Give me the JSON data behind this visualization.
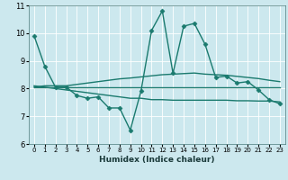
{
  "xlabel": "Humidex (Indice chaleur)",
  "xlim": [
    -0.5,
    23.5
  ],
  "ylim": [
    6,
    11
  ],
  "yticks": [
    6,
    7,
    8,
    9,
    10,
    11
  ],
  "xticks": [
    0,
    1,
    2,
    3,
    4,
    5,
    6,
    7,
    8,
    9,
    10,
    11,
    12,
    13,
    14,
    15,
    16,
    17,
    18,
    19,
    20,
    21,
    22,
    23
  ],
  "bg_color": "#cce8ee",
  "grid_color": "#ffffff",
  "line_color": "#1a7a6e",
  "line1_y": [
    9.9,
    8.8,
    8.05,
    8.05,
    7.75,
    7.65,
    7.7,
    7.3,
    7.3,
    6.5,
    7.9,
    10.1,
    10.8,
    8.55,
    10.25,
    10.35,
    9.6,
    8.4,
    8.45,
    8.2,
    8.25,
    7.95,
    7.6,
    7.45
  ],
  "line2_y": [
    8.05,
    8.05,
    8.05,
    8.05,
    8.05,
    8.05,
    8.05,
    8.05,
    8.05,
    8.05,
    8.05,
    8.05,
    8.05,
    8.05,
    8.05,
    8.05,
    8.05,
    8.05,
    8.05,
    8.05,
    8.05,
    8.05,
    8.05,
    8.05
  ],
  "line3_y": [
    8.05,
    8.1,
    8.1,
    8.1,
    8.15,
    8.2,
    8.25,
    8.3,
    8.35,
    8.38,
    8.42,
    8.46,
    8.5,
    8.52,
    8.54,
    8.56,
    8.52,
    8.5,
    8.48,
    8.44,
    8.4,
    8.36,
    8.3,
    8.25
  ],
  "line4_y": [
    8.1,
    8.05,
    8.0,
    7.95,
    7.9,
    7.85,
    7.8,
    7.75,
    7.7,
    7.65,
    7.65,
    7.6,
    7.6,
    7.58,
    7.58,
    7.58,
    7.58,
    7.58,
    7.58,
    7.56,
    7.56,
    7.55,
    7.55,
    7.52
  ],
  "linewidth": 1.0,
  "marker": "D",
  "marker_size": 2.5
}
